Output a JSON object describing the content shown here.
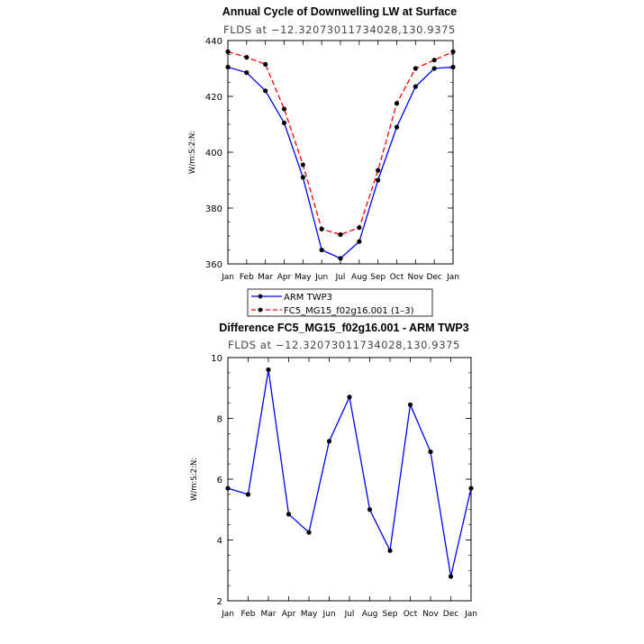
{
  "chart_data": [
    {
      "type": "line",
      "title": "Annual Cycle of Downwelling LW at Surface",
      "subtitle": "FLDS at −12.32073011734028,130.9375",
      "ylabel": "W/m:S:2:N:",
      "xlabel": "",
      "categories": [
        "Jan",
        "Feb",
        "Mar",
        "Apr",
        "May",
        "Jun",
        "Jul",
        "Aug",
        "Sep",
        "Oct",
        "Nov",
        "Dec",
        "Jan"
      ],
      "ylim": [
        360,
        440
      ],
      "yticks": [
        360,
        380,
        400,
        420,
        440
      ],
      "grid": false,
      "legend_position": "bottom",
      "series": [
        {
          "name": "ARM TWP3",
          "color": "#0000ff",
          "dash": "solid",
          "values": [
            430.5,
            428.5,
            422.0,
            410.5,
            391.0,
            365.0,
            362.0,
            368.0,
            390.0,
            409.0,
            423.5,
            430.0,
            430.5
          ]
        },
        {
          "name": "FC5_MG15_f02g16.001 (1–3)",
          "color": "#ff0000",
          "dash": "dashed",
          "values": [
            436.0,
            434.0,
            431.5,
            415.5,
            395.5,
            372.5,
            370.5,
            373.0,
            393.5,
            417.5,
            430.0,
            433.0,
            436.0
          ]
        }
      ]
    },
    {
      "type": "line",
      "title": "Difference FC5_MG15_f02g16.001 - ARM TWP3",
      "subtitle": "FLDS at −12.32073011734028,130.9375",
      "ylabel": "W/m:S:2:N:",
      "xlabel": "",
      "categories": [
        "Jan",
        "Feb",
        "Mar",
        "Apr",
        "May",
        "Jun",
        "Jul",
        "Aug",
        "Sep",
        "Oct",
        "Nov",
        "Dec",
        "Jan"
      ],
      "ylim": [
        2,
        10
      ],
      "yticks": [
        2,
        4,
        6,
        8,
        10
      ],
      "grid": false,
      "series": [
        {
          "color": "#0000ff",
          "dash": "solid",
          "values": [
            5.7,
            5.5,
            9.6,
            4.85,
            4.25,
            7.25,
            8.7,
            5.0,
            3.65,
            8.45,
            6.9,
            2.8,
            5.7
          ]
        }
      ]
    }
  ]
}
